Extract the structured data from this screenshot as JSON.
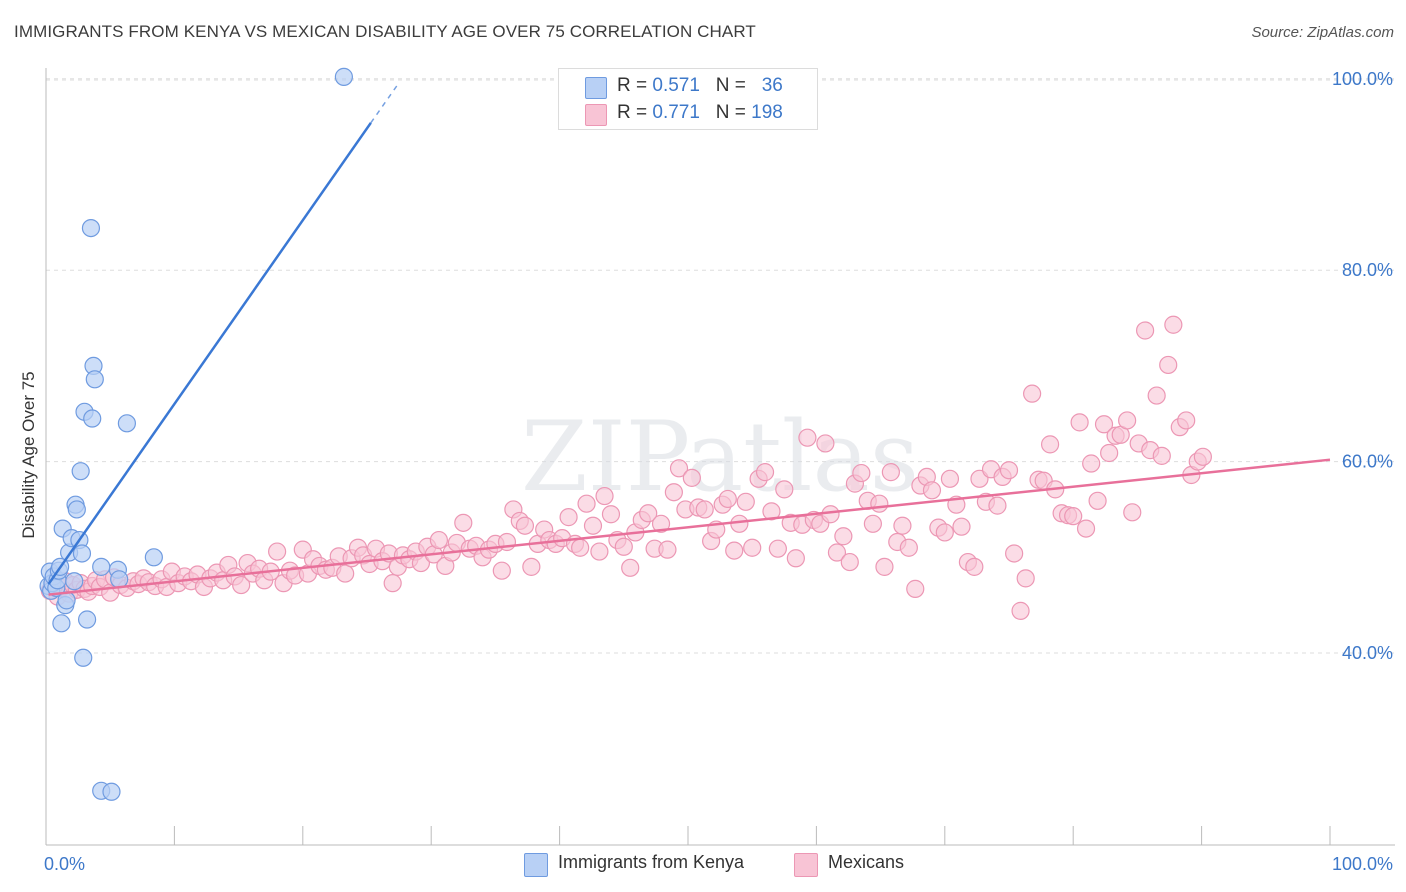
{
  "header": {
    "title": "IMMIGRANTS FROM KENYA VS MEXICAN DISABILITY AGE OVER 75 CORRELATION CHART",
    "source": "Source: ZipAtlas.com"
  },
  "legend": {
    "kenya": {
      "r_label": "R = ",
      "r_value": "0.571",
      "n_label": "N = ",
      "n_value": "36"
    },
    "mexicans": {
      "r_label": "R = ",
      "r_value": "0.771",
      "n_label": "N = ",
      "n_value": "198"
    }
  },
  "colors": {
    "kenya_fill": "#b8d0f5",
    "kenya_stroke": "#6f9be0",
    "kenya_line": "#3a78d4",
    "mex_fill": "#f8c4d5",
    "mex_stroke": "#ec97b4",
    "mex_line": "#e8709a",
    "axis_label": "#3d78c9",
    "grid": "#dddddd"
  },
  "chart_data": {
    "type": "scatter",
    "title": "IMMIGRANTS FROM KENYA VS MEXICAN DISABILITY AGE OVER 75 CORRELATION CHART",
    "xlabel": "",
    "ylabel": "Disability Age Over 75",
    "xlim": [
      0,
      100
    ],
    "ylim": [
      20,
      102
    ],
    "x_tick_labels": [
      "0.0%",
      "100.0%"
    ],
    "y_ticks": [
      40,
      60,
      80,
      100
    ],
    "y_tick_labels": [
      "40.0%",
      "60.0%",
      "80.0%",
      "100.0%"
    ],
    "grid": true,
    "watermark": "ZIPatlas",
    "series": [
      {
        "name": "Immigrants from Kenya",
        "R": 0.571,
        "N": 36,
        "trend": {
          "x0": 0.2,
          "y0": 47.2,
          "x1": 25.3,
          "y1": 95.4,
          "dash_to_x": 27.5,
          "dash_to_y": 99.6
        },
        "points": [
          [
            0.2,
            47.0
          ],
          [
            0.3,
            48.5
          ],
          [
            0.4,
            46.5
          ],
          [
            0.5,
            47.3
          ],
          [
            0.6,
            48.0
          ],
          [
            0.8,
            46.8
          ],
          [
            0.9,
            47.6
          ],
          [
            1.0,
            48.6
          ],
          [
            1.1,
            49.0
          ],
          [
            1.2,
            43.1
          ],
          [
            1.3,
            53.0
          ],
          [
            1.5,
            45.0
          ],
          [
            1.6,
            45.5
          ],
          [
            1.8,
            50.5
          ],
          [
            2.0,
            52.0
          ],
          [
            2.2,
            47.5
          ],
          [
            2.3,
            55.5
          ],
          [
            2.4,
            55.0
          ],
          [
            2.6,
            51.8
          ],
          [
            2.7,
            59.0
          ],
          [
            2.8,
            50.4
          ],
          [
            2.9,
            39.5
          ],
          [
            3.0,
            65.2
          ],
          [
            3.2,
            43.5
          ],
          [
            3.5,
            84.4
          ],
          [
            3.6,
            64.5
          ],
          [
            3.7,
            70.0
          ],
          [
            3.8,
            68.6
          ],
          [
            4.3,
            25.6
          ],
          [
            5.1,
            25.5
          ],
          [
            5.6,
            48.7
          ],
          [
            5.7,
            47.7
          ],
          [
            6.3,
            64.0
          ],
          [
            8.4,
            50.0
          ],
          [
            23.2,
            100.2
          ],
          [
            4.3,
            49.0
          ]
        ]
      },
      {
        "name": "Mexicans",
        "R": 0.771,
        "N": 198,
        "trend": {
          "x0": 0.2,
          "y0": 46.1,
          "x1": 100,
          "y1": 60.2
        },
        "points": [
          [
            0.3,
            46.5
          ],
          [
            0.6,
            47.2
          ],
          [
            0.9,
            45.9
          ],
          [
            1.2,
            46.8
          ],
          [
            1.5,
            47.5
          ],
          [
            1.8,
            46.2
          ],
          [
            2.1,
            47.1
          ],
          [
            2.4,
            46.6
          ],
          [
            2.7,
            47.3
          ],
          [
            3.0,
            46.7
          ],
          [
            3.3,
            46.4
          ],
          [
            3.6,
            47.0
          ],
          [
            3.9,
            47.6
          ],
          [
            4.2,
            46.9
          ],
          [
            4.6,
            47.7
          ],
          [
            5.0,
            46.3
          ],
          [
            5.3,
            47.9
          ],
          [
            5.8,
            47.1
          ],
          [
            6.3,
            46.8
          ],
          [
            6.8,
            47.5
          ],
          [
            7.2,
            47.2
          ],
          [
            7.6,
            47.8
          ],
          [
            8.0,
            47.4
          ],
          [
            8.5,
            47.0
          ],
          [
            9.0,
            47.7
          ],
          [
            9.4,
            46.9
          ],
          [
            9.8,
            48.5
          ],
          [
            10.3,
            47.3
          ],
          [
            10.8,
            48.0
          ],
          [
            11.3,
            47.5
          ],
          [
            11.8,
            48.2
          ],
          [
            12.3,
            46.9
          ],
          [
            12.8,
            47.8
          ],
          [
            13.3,
            48.4
          ],
          [
            13.8,
            47.6
          ],
          [
            14.2,
            49.2
          ],
          [
            14.7,
            48.0
          ],
          [
            15.2,
            47.1
          ],
          [
            15.7,
            49.4
          ],
          [
            16.1,
            48.3
          ],
          [
            16.6,
            48.8
          ],
          [
            17.0,
            47.6
          ],
          [
            17.5,
            48.5
          ],
          [
            18.0,
            50.6
          ],
          [
            18.5,
            47.3
          ],
          [
            19.0,
            48.6
          ],
          [
            19.4,
            48.1
          ],
          [
            20.0,
            50.8
          ],
          [
            20.4,
            48.3
          ],
          [
            20.8,
            49.8
          ],
          [
            21.3,
            49.1
          ],
          [
            21.8,
            48.7
          ],
          [
            22.3,
            48.9
          ],
          [
            22.8,
            50.1
          ],
          [
            23.3,
            48.3
          ],
          [
            23.8,
            49.9
          ],
          [
            24.3,
            51.0
          ],
          [
            24.7,
            50.2
          ],
          [
            25.2,
            49.3
          ],
          [
            25.7,
            50.9
          ],
          [
            26.2,
            49.6
          ],
          [
            26.7,
            50.4
          ],
          [
            27.0,
            47.3
          ],
          [
            27.4,
            49.0
          ],
          [
            27.8,
            50.2
          ],
          [
            28.3,
            49.8
          ],
          [
            28.8,
            50.6
          ],
          [
            29.2,
            49.4
          ],
          [
            29.7,
            51.1
          ],
          [
            30.2,
            50.3
          ],
          [
            30.6,
            51.8
          ],
          [
            31.1,
            49.1
          ],
          [
            31.6,
            50.5
          ],
          [
            32.0,
            51.5
          ],
          [
            32.5,
            53.6
          ],
          [
            33.0,
            50.9
          ],
          [
            33.5,
            51.2
          ],
          [
            34.0,
            50.0
          ],
          [
            34.5,
            50.8
          ],
          [
            35.0,
            51.4
          ],
          [
            35.5,
            48.6
          ],
          [
            35.9,
            51.6
          ],
          [
            36.4,
            55.0
          ],
          [
            36.9,
            53.8
          ],
          [
            37.3,
            53.3
          ],
          [
            37.8,
            49.0
          ],
          [
            38.3,
            51.4
          ],
          [
            38.8,
            52.9
          ],
          [
            39.2,
            51.8
          ],
          [
            39.7,
            51.4
          ],
          [
            40.2,
            52.0
          ],
          [
            40.7,
            54.2
          ],
          [
            41.2,
            51.4
          ],
          [
            41.6,
            51.0
          ],
          [
            42.1,
            55.6
          ],
          [
            42.6,
            53.3
          ],
          [
            43.1,
            50.6
          ],
          [
            43.5,
            56.4
          ],
          [
            44.0,
            54.5
          ],
          [
            44.5,
            51.8
          ],
          [
            45.0,
            51.1
          ],
          [
            45.5,
            48.9
          ],
          [
            45.9,
            52.6
          ],
          [
            46.4,
            53.9
          ],
          [
            46.9,
            54.6
          ],
          [
            47.4,
            50.9
          ],
          [
            47.9,
            53.5
          ],
          [
            48.4,
            50.8
          ],
          [
            48.9,
            56.8
          ],
          [
            49.3,
            59.3
          ],
          [
            49.8,
            55.0
          ],
          [
            50.3,
            58.3
          ],
          [
            50.8,
            55.2
          ],
          [
            51.3,
            55.0
          ],
          [
            51.8,
            51.7
          ],
          [
            52.2,
            52.9
          ],
          [
            52.7,
            55.5
          ],
          [
            53.1,
            56.1
          ],
          [
            53.6,
            50.7
          ],
          [
            54.0,
            53.5
          ],
          [
            54.5,
            55.8
          ],
          [
            55.0,
            51.0
          ],
          [
            55.5,
            58.2
          ],
          [
            56.0,
            58.9
          ],
          [
            56.5,
            54.8
          ],
          [
            57.0,
            50.9
          ],
          [
            57.5,
            57.1
          ],
          [
            58.0,
            53.6
          ],
          [
            58.4,
            49.9
          ],
          [
            58.9,
            53.4
          ],
          [
            59.3,
            62.5
          ],
          [
            59.8,
            53.9
          ],
          [
            60.3,
            53.5
          ],
          [
            60.7,
            61.9
          ],
          [
            61.1,
            54.5
          ],
          [
            61.6,
            50.5
          ],
          [
            62.1,
            52.2
          ],
          [
            62.6,
            49.5
          ],
          [
            63.0,
            57.7
          ],
          [
            63.5,
            58.8
          ],
          [
            64.0,
            55.9
          ],
          [
            64.4,
            53.5
          ],
          [
            64.9,
            55.6
          ],
          [
            65.3,
            49.0
          ],
          [
            65.8,
            58.9
          ],
          [
            66.3,
            51.6
          ],
          [
            66.7,
            53.3
          ],
          [
            67.2,
            51.0
          ],
          [
            67.7,
            46.7
          ],
          [
            68.1,
            57.5
          ],
          [
            68.6,
            58.4
          ],
          [
            69.0,
            57.0
          ],
          [
            69.5,
            53.1
          ],
          [
            70.0,
            52.6
          ],
          [
            70.4,
            58.2
          ],
          [
            70.9,
            55.5
          ],
          [
            71.3,
            53.2
          ],
          [
            71.8,
            49.5
          ],
          [
            72.3,
            49.0
          ],
          [
            72.7,
            58.2
          ],
          [
            73.2,
            55.8
          ],
          [
            73.6,
            59.2
          ],
          [
            74.1,
            55.4
          ],
          [
            74.5,
            58.4
          ],
          [
            75.0,
            59.1
          ],
          [
            75.4,
            50.4
          ],
          [
            75.9,
            44.4
          ],
          [
            76.3,
            47.8
          ],
          [
            76.8,
            67.1
          ],
          [
            77.3,
            58.1
          ],
          [
            77.7,
            58.0
          ],
          [
            78.2,
            61.8
          ],
          [
            78.6,
            57.1
          ],
          [
            79.1,
            54.6
          ],
          [
            79.6,
            54.4
          ],
          [
            80.0,
            54.3
          ],
          [
            80.5,
            64.1
          ],
          [
            81.0,
            53.0
          ],
          [
            81.4,
            59.8
          ],
          [
            81.9,
            55.9
          ],
          [
            82.4,
            63.9
          ],
          [
            82.8,
            60.9
          ],
          [
            83.3,
            62.7
          ],
          [
            83.7,
            62.8
          ],
          [
            84.2,
            64.3
          ],
          [
            84.6,
            54.7
          ],
          [
            85.1,
            61.9
          ],
          [
            85.6,
            73.7
          ],
          [
            86.0,
            61.2
          ],
          [
            86.5,
            66.9
          ],
          [
            86.9,
            60.6
          ],
          [
            87.4,
            70.1
          ],
          [
            87.8,
            74.3
          ],
          [
            88.3,
            63.6
          ],
          [
            88.8,
            64.3
          ],
          [
            89.2,
            58.6
          ],
          [
            89.7,
            60.0
          ],
          [
            90.1,
            60.5
          ]
        ]
      }
    ]
  }
}
